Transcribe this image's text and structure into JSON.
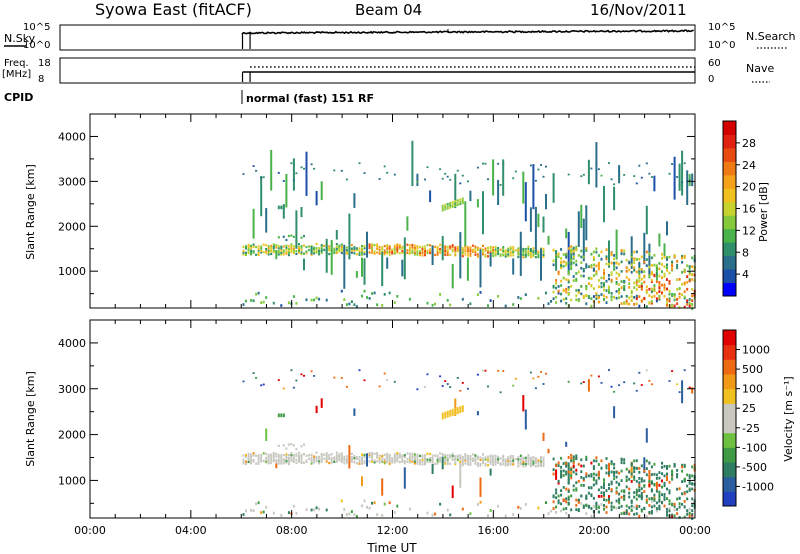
{
  "header": {
    "station": "Syowa East (fitACF)",
    "beam": "Beam 04",
    "date": "16/Nov/2011"
  },
  "panels": {
    "nsky_label": "N.Sky",
    "nsky_ticks": [
      "10^5",
      "10^0"
    ],
    "nsearch_label": "N.Search",
    "nsearch_ticks": [
      "10^5",
      "10^0"
    ],
    "freq_label_1": "Freq.",
    "freq_label_2": "[MHz]",
    "freq_ticks": [
      "18",
      "8"
    ],
    "nave_label": "Nave",
    "nave_ticks": [
      "60",
      "0"
    ],
    "cpid_label": "CPID",
    "cpid_text": "normal (fast) 151 RF"
  },
  "power_colorbar": {
    "label": "Power [dB]",
    "ticks": [
      "28",
      "24",
      "20",
      "16",
      "12",
      "8",
      "4"
    ],
    "colors": [
      "#0000ff",
      "#1c4fa8",
      "#2a6e8c",
      "#2f8f6a",
      "#49b24a",
      "#86c93a",
      "#c8d22d",
      "#f0c020",
      "#f5a21a",
      "#ef7a14",
      "#e84a10",
      "#e02010",
      "#d40000"
    ]
  },
  "velocity_colorbar": {
    "label": "Velocity [m s⁻¹]",
    "ticks": [
      "1000",
      "500",
      "100",
      "25",
      "-25",
      "-100",
      "-500",
      "-1000"
    ],
    "colors": [
      "#2040c0",
      "#2a5e9e",
      "#2f7d62",
      "#3e9a44",
      "#6ec040",
      "#c8c8c0",
      "#c8c8c0",
      "#f0c020",
      "#f29a18",
      "#ee6a12",
      "#e83010",
      "#e00000"
    ]
  },
  "chart_data": [
    {
      "type": "heatmap",
      "name": "power",
      "ylabel": "Slant Range [km]",
      "xlabel": "Time UT",
      "xlim": [
        0,
        24
      ],
      "ylim": [
        180,
        4500
      ],
      "x_ticks": [
        "00:00",
        "04:00",
        "08:00",
        "12:00",
        "16:00",
        "20:00",
        "00:00"
      ],
      "y_ticks": [
        "1000",
        "2000",
        "3000",
        "4000"
      ],
      "scale_label": "Power [dB]",
      "scale_range": [
        0,
        30
      ],
      "features": [
        {
          "t_start": 6.0,
          "t_end": 18.0,
          "range_km": [
            1350,
            1600
          ],
          "value_db": 14
        },
        {
          "t_start": 14.0,
          "t_end": 14.6,
          "range_km": [
            2350,
            2550
          ],
          "value_db": 12
        },
        {
          "t_start": 18.5,
          "t_end": 24.0,
          "range_km": [
            400,
            1400
          ],
          "value_db": 10
        }
      ]
    },
    {
      "type": "heatmap",
      "name": "velocity",
      "ylabel": "Slant Range [km]",
      "xlabel": "Time UT",
      "xlim": [
        0,
        24
      ],
      "ylim": [
        180,
        4500
      ],
      "x_ticks": [
        "00:00",
        "04:00",
        "08:00",
        "12:00",
        "16:00",
        "20:00",
        "00:00"
      ],
      "y_ticks": [
        "1000",
        "2000",
        "3000",
        "4000"
      ],
      "scale_label": "Velocity [m s⁻¹]",
      "scale_range": [
        -1000,
        1000
      ],
      "features": [
        {
          "t_start": 6.0,
          "t_end": 18.0,
          "range_km": [
            1350,
            1600
          ],
          "value_ms": 0
        },
        {
          "t_start": 14.0,
          "t_end": 14.6,
          "range_km": [
            2350,
            2550
          ],
          "value_ms": -60
        },
        {
          "t_start": 18.5,
          "t_end": 24.0,
          "range_km": [
            400,
            1400
          ],
          "value_ms": 150
        }
      ]
    }
  ]
}
